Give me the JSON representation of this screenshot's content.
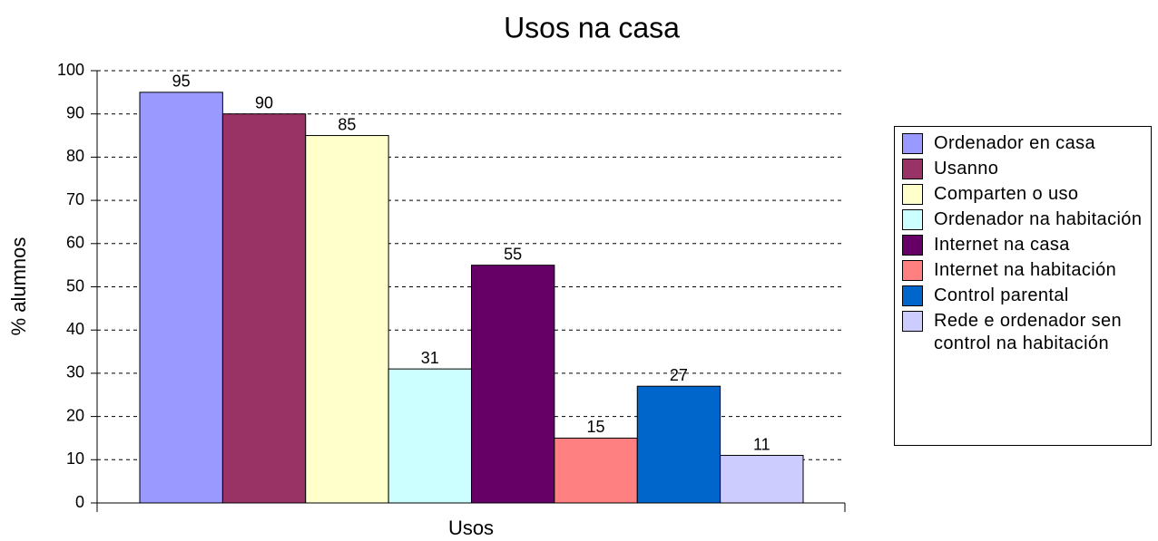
{
  "chart_data": {
    "type": "bar",
    "title": "Usos na casa",
    "x_label": "Usos",
    "y_label": "% alumnos",
    "series": [
      {
        "name": "Ordenador en casa",
        "color": "#9999ff",
        "values": [
          95
        ]
      },
      {
        "name": "Usanno",
        "color": "#993366",
        "values": [
          90
        ]
      },
      {
        "name": "Comparten o uso",
        "color": "#ffffcc",
        "values": [
          85
        ]
      },
      {
        "name": "Ordenador na habitación",
        "color": "#ccffff",
        "values": [
          31
        ]
      },
      {
        "name": "Internet na casa",
        "color": "#660066",
        "values": [
          55
        ]
      },
      {
        "name": "Internet na habitación",
        "color": "#ff8080",
        "values": [
          15
        ]
      },
      {
        "name": "Control parental",
        "color": "#0066cc",
        "values": [
          27
        ]
      },
      {
        "name": "Rede e ordenador sen control na habitación",
        "color": "#ccccff",
        "values": [
          11
        ]
      }
    ],
    "ylim": [
      0,
      100
    ],
    "yticks": [
      0,
      10,
      20,
      30,
      40,
      50,
      60,
      70,
      80,
      90,
      100
    ],
    "grid": true,
    "legend": "right"
  }
}
